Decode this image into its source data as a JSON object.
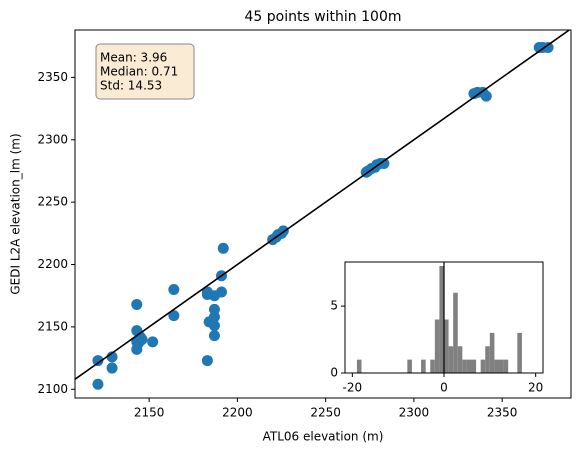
{
  "chart_data": [
    {
      "type": "scatter",
      "title": "45 points within 100m",
      "x_label": "ATL06 elevation (m)",
      "y_label": "GEDI L2A elevation_lm (m)",
      "color": "#1f77b4",
      "identity_line": true,
      "x": [
        2121,
        2121,
        2129,
        2129,
        2143,
        2143,
        2143,
        2143,
        2144,
        2145,
        2146,
        2152,
        2164,
        2164,
        2183,
        2183,
        2184,
        2187,
        2187,
        2187,
        2187,
        2187,
        2191,
        2191,
        2192,
        2183,
        2220,
        2222,
        2223,
        2225,
        2226,
        2273,
        2274,
        2276,
        2278,
        2279,
        2281,
        2283,
        2334,
        2336,
        2339,
        2341,
        2371,
        2373,
        2376
      ],
      "y": [
        2104,
        2123,
        2126,
        2117,
        2168,
        2147,
        2138,
        2132,
        2137,
        2142,
        2140,
        2138,
        2180,
        2159,
        2176,
        2178,
        2154,
        2164,
        2151,
        2143,
        2158,
        2175,
        2178,
        2191,
        2213,
        2123,
        2220,
        2222,
        2224,
        2225,
        2227,
        2274,
        2275,
        2277,
        2278,
        2280,
        2281,
        2281,
        2337,
        2338,
        2338,
        2335,
        2374,
        2374,
        2374
      ],
      "xlim": [
        2108,
        2389
      ],
      "ylim": [
        2093,
        2388
      ],
      "xticks": [
        2150,
        2200,
        2250,
        2300,
        2350
      ],
      "yticks": [
        2100,
        2150,
        2200,
        2250,
        2300,
        2350
      ],
      "annotation": [
        "Mean: 3.96",
        "Median: 0.71",
        "Std: 14.53"
      ]
    },
    {
      "type": "histogram",
      "color": "#808080",
      "vline": 0,
      "bins": [
        -19,
        -18,
        -17,
        -16,
        -15,
        -14,
        -13,
        -12,
        -11,
        -10,
        -9,
        -8,
        -7,
        -6,
        -5,
        -4,
        -3,
        -2,
        -1,
        0,
        1,
        2,
        3,
        4,
        5,
        6,
        7,
        8,
        9,
        10,
        11,
        12,
        13,
        14,
        15,
        16,
        17,
        18
      ],
      "values": [
        1,
        0,
        0,
        0,
        0,
        0,
        0,
        0,
        0,
        0,
        0,
        1,
        0,
        0,
        1,
        0,
        1,
        4,
        8,
        4,
        2,
        6,
        2,
        1,
        1,
        1,
        0,
        1,
        2,
        3,
        1,
        1,
        1,
        0,
        0,
        3,
        0
      ],
      "xlim": [
        -21.6,
        21.6
      ],
      "ylim": [
        0,
        8.3
      ],
      "xticks": [
        -20,
        0,
        20
      ],
      "yticks": [
        0,
        5
      ]
    }
  ]
}
